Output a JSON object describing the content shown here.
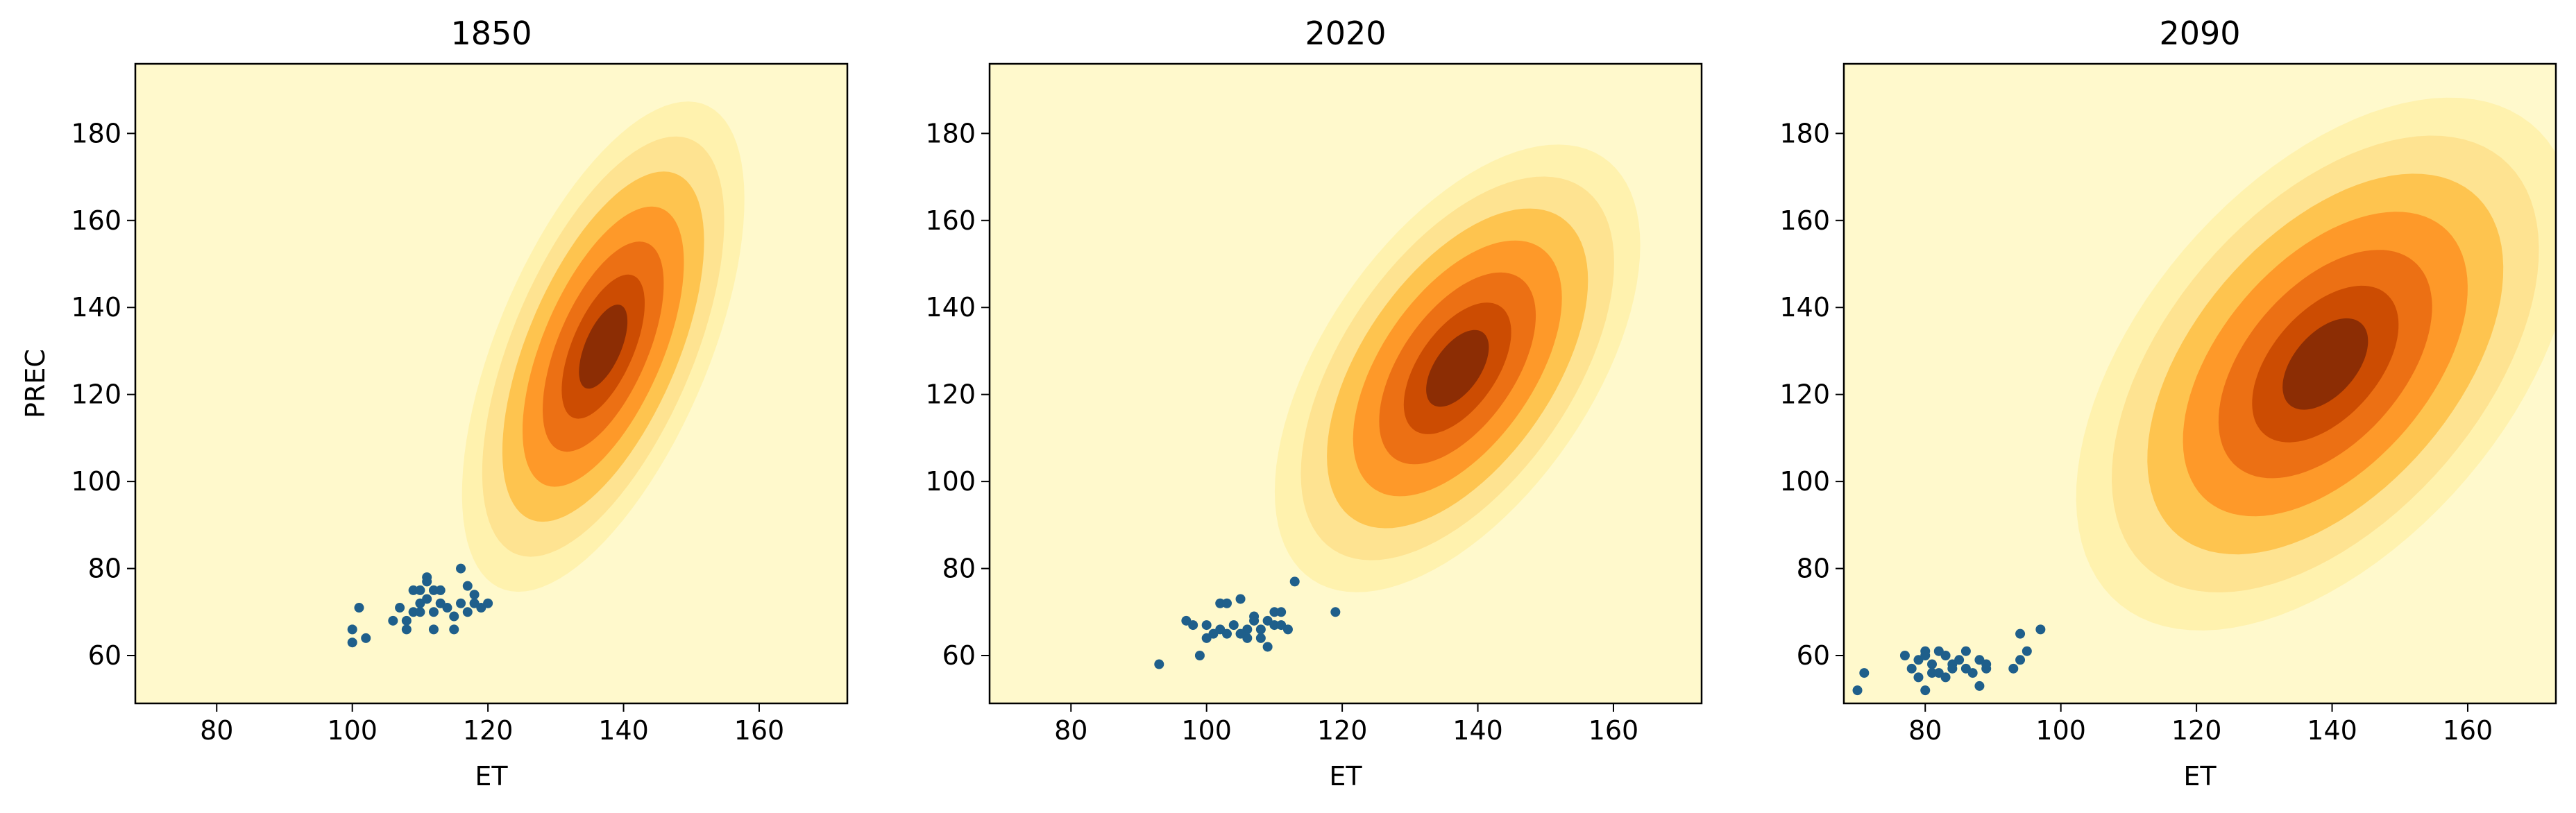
{
  "colors": {
    "background": "#fff9cc",
    "levels": [
      "#fff2ae",
      "#fee391",
      "#fec44f",
      "#fe9929",
      "#ec7014",
      "#cc4c02",
      "#8c2d04"
    ],
    "points": "#1f5f8b"
  },
  "chart_data": [
    {
      "type": "scatter",
      "title": "1850",
      "xlabel": "ET",
      "ylabel": "PREC",
      "xlim": [
        68,
        173
      ],
      "ylim": [
        49,
        196
      ],
      "xticks": [
        80,
        100,
        120,
        140,
        160
      ],
      "yticks": [
        60,
        80,
        100,
        120,
        140,
        160,
        180
      ],
      "density": {
        "kind": "filled-contour",
        "center": [
          137,
          131
        ],
        "sx": 8.5,
        "sy": 23,
        "rho": 0.6
      },
      "points": [
        [
          100,
          63
        ],
        [
          100,
          66
        ],
        [
          102,
          64
        ],
        [
          101,
          71
        ],
        [
          106,
          68
        ],
        [
          107,
          71
        ],
        [
          108,
          66
        ],
        [
          108,
          68
        ],
        [
          109,
          70
        ],
        [
          109,
          75
        ],
        [
          110,
          72
        ],
        [
          110,
          75
        ],
        [
          111,
          73
        ],
        [
          111,
          78
        ],
        [
          112,
          75
        ],
        [
          112,
          70
        ],
        [
          112,
          66
        ],
        [
          113,
          72
        ],
        [
          114,
          71
        ],
        [
          115,
          66
        ],
        [
          115,
          69
        ],
        [
          116,
          72
        ],
        [
          116,
          80
        ],
        [
          117,
          76
        ],
        [
          117,
          70
        ],
        [
          118,
          74
        ],
        [
          118,
          72
        ],
        [
          119,
          71
        ],
        [
          120,
          72
        ],
        [
          111,
          77
        ],
        [
          113,
          75
        ],
        [
          110,
          70
        ]
      ]
    },
    {
      "type": "scatter",
      "title": "2020",
      "xlabel": "ET",
      "ylabel": "",
      "xlim": [
        68,
        173
      ],
      "ylim": [
        49,
        196
      ],
      "xticks": [
        80,
        100,
        120,
        140,
        160
      ],
      "yticks": [
        60,
        80,
        100,
        120,
        140,
        160,
        180
      ],
      "density": {
        "kind": "filled-contour",
        "center": [
          137,
          126
        ],
        "sx": 11,
        "sy": 21,
        "rho": 0.55
      },
      "points": [
        [
          93,
          58
        ],
        [
          97,
          68
        ],
        [
          98,
          67
        ],
        [
          99,
          60
        ],
        [
          100,
          64
        ],
        [
          100,
          67
        ],
        [
          101,
          65
        ],
        [
          102,
          66
        ],
        [
          102,
          72
        ],
        [
          103,
          72
        ],
        [
          104,
          67
        ],
        [
          105,
          73
        ],
        [
          106,
          64
        ],
        [
          106,
          66
        ],
        [
          107,
          68
        ],
        [
          107,
          69
        ],
        [
          108,
          66
        ],
        [
          108,
          64
        ],
        [
          109,
          62
        ],
        [
          109,
          68
        ],
        [
          110,
          67
        ],
        [
          110,
          70
        ],
        [
          111,
          67
        ],
        [
          111,
          70
        ],
        [
          112,
          66
        ],
        [
          113,
          77
        ],
        [
          119,
          70
        ],
        [
          105,
          65
        ],
        [
          103,
          65
        ]
      ]
    },
    {
      "type": "scatter",
      "title": "2090",
      "xlabel": "ET",
      "ylabel": "",
      "xlim": [
        68,
        173
      ],
      "ylim": [
        49,
        196
      ],
      "xticks": [
        80,
        100,
        120,
        140,
        160
      ],
      "yticks": [
        60,
        80,
        100,
        120,
        140,
        160,
        180
      ],
      "density": {
        "kind": "filled-contour",
        "center": [
          139,
          127
        ],
        "sx": 15,
        "sy": 25,
        "rho": 0.5
      },
      "points": [
        [
          70,
          52
        ],
        [
          71,
          56
        ],
        [
          77,
          60
        ],
        [
          78,
          57
        ],
        [
          79,
          55
        ],
        [
          79,
          59
        ],
        [
          80,
          52
        ],
        [
          80,
          60
        ],
        [
          81,
          56
        ],
        [
          81,
          58
        ],
        [
          82,
          61
        ],
        [
          82,
          56
        ],
        [
          83,
          55
        ],
        [
          84,
          57
        ],
        [
          84,
          58
        ],
        [
          85,
          59
        ],
        [
          86,
          57
        ],
        [
          86,
          61
        ],
        [
          87,
          56
        ],
        [
          88,
          53
        ],
        [
          88,
          59
        ],
        [
          89,
          57
        ],
        [
          89,
          58
        ],
        [
          93,
          57
        ],
        [
          94,
          59
        ],
        [
          94,
          65
        ],
        [
          95,
          61
        ],
        [
          97,
          66
        ],
        [
          83,
          60
        ],
        [
          80,
          61
        ]
      ]
    }
  ]
}
